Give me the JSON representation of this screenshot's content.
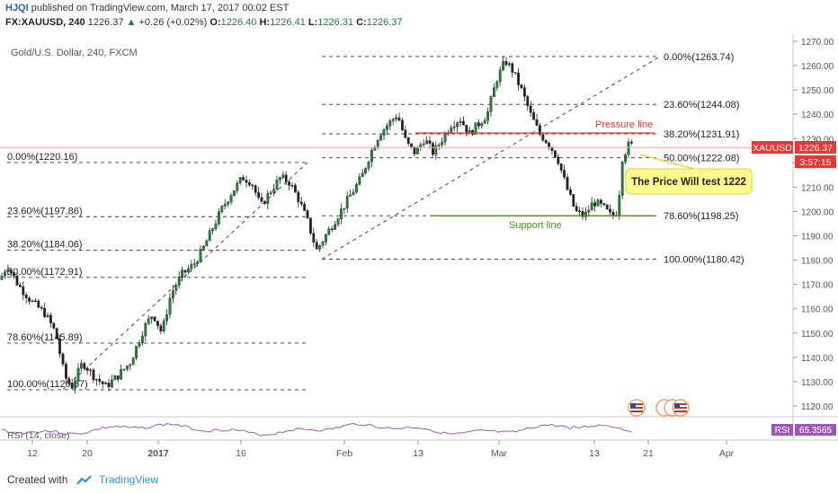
{
  "header": {
    "user": "HJQI",
    "published": "published on TradingView.com, March 17, 2017 00:02 EST"
  },
  "quote": {
    "symbol": "FX:XAUUSD, 240",
    "last": "1226.37",
    "change_arrow": "▲",
    "change": "+0.26 (+0.02%)",
    "o_label": "O:",
    "o": "1226.40",
    "h_label": "H:",
    "h": "1226.41",
    "l_label": "L:",
    "l": "1226.31",
    "c_label": "C:",
    "c": "1226.37"
  },
  "chart_title": "Gold/U.S. Dollar, 240, FXCM",
  "price_badge": {
    "symbol": "XAUUSD",
    "price": "1226.37",
    "countdown": "3:57:15",
    "color": "#e53935"
  },
  "rsi": {
    "label": "RSI (14, close)",
    "badge_name": "RSI",
    "badge_value": "65.3565",
    "color": "#9b59b6"
  },
  "footer": {
    "created_with": "Created with",
    "brand": "TradingView",
    "logo_icon": "tradingview-logo-icon"
  },
  "annotation": {
    "text": "The Price Will test 1222",
    "bg": "#fffb8f"
  },
  "pressure_line": {
    "label": "Pressure line",
    "price": 1232.3,
    "color": "#e53935"
  },
  "support_line": {
    "label": "Support line",
    "price": 1198.25,
    "color": "#4f8a2a"
  },
  "event_icon": "us-flag-calendar-icon",
  "chart_data": {
    "type": "candlestick",
    "yaxis_ticks": [
      1120,
      1130,
      1140,
      1150,
      1160,
      1170,
      1180,
      1190,
      1200,
      1210,
      1220,
      1230,
      1240,
      1250,
      1260,
      1270
    ],
    "ylim": [
      1115,
      1272
    ],
    "xaxis_ticks": [
      "12",
      "20",
      "2017",
      "16",
      "Feb",
      "13",
      "Mar",
      "13",
      "21",
      "Apr"
    ],
    "grid": false,
    "fib_left": [
      {
        "label": "0.00%(1220.16)",
        "price": 1220.16
      },
      {
        "label": "23.60%(1197.86)",
        "price": 1197.86
      },
      {
        "label": "38.20%(1184.06)",
        "price": 1184.06
      },
      {
        "label": "50.00%(1172.91)",
        "price": 1172.91
      },
      {
        "label": "78.60%(1145.89)",
        "price": 1145.89
      },
      {
        "label": "100.00%(1126.67)",
        "price": 1126.67
      }
    ],
    "fib_right": [
      {
        "label": "0.00%(1263.74)",
        "price": 1263.74
      },
      {
        "label": "23.60%(1244.08)",
        "price": 1244.08
      },
      {
        "label": "38.20%(1231.91)",
        "price": 1231.91
      },
      {
        "label": "50.00%(1222.08)",
        "price": 1222.08
      },
      {
        "label": "78.60%(1198.25)",
        "price": 1198.25
      },
      {
        "label": "100.00%(1180.42)",
        "price": 1180.42
      }
    ],
    "price_path": [
      [
        0,
        1172
      ],
      [
        8,
        1178
      ],
      [
        20,
        1170
      ],
      [
        35,
        1163
      ],
      [
        50,
        1158
      ],
      [
        62,
        1150
      ],
      [
        72,
        1132
      ],
      [
        80,
        1128
      ],
      [
        92,
        1138
      ],
      [
        105,
        1132
      ],
      [
        118,
        1128
      ],
      [
        130,
        1132
      ],
      [
        145,
        1138
      ],
      [
        160,
        1152
      ],
      [
        170,
        1158
      ],
      [
        180,
        1150
      ],
      [
        190,
        1166
      ],
      [
        202,
        1174
      ],
      [
        215,
        1178
      ],
      [
        225,
        1184
      ],
      [
        235,
        1192
      ],
      [
        248,
        1202
      ],
      [
        258,
        1208
      ],
      [
        270,
        1214
      ],
      [
        280,
        1212
      ],
      [
        290,
        1202
      ],
      [
        300,
        1208
      ],
      [
        312,
        1214
      ],
      [
        322,
        1212
      ],
      [
        332,
        1205
      ],
      [
        342,
        1196
      ],
      [
        352,
        1184
      ],
      [
        362,
        1190
      ],
      [
        372,
        1196
      ],
      [
        382,
        1202
      ],
      [
        392,
        1208
      ],
      [
        402,
        1214
      ],
      [
        412,
        1224
      ],
      [
        422,
        1232
      ],
      [
        432,
        1236
      ],
      [
        442,
        1240
      ],
      [
        452,
        1228
      ],
      [
        462,
        1224
      ],
      [
        472,
        1230
      ],
      [
        482,
        1224
      ],
      [
        492,
        1230
      ],
      [
        502,
        1236
      ],
      [
        512,
        1238
      ],
      [
        522,
        1232
      ],
      [
        532,
        1236
      ],
      [
        542,
        1240
      ],
      [
        552,
        1254
      ],
      [
        562,
        1262
      ],
      [
        570,
        1258
      ],
      [
        580,
        1250
      ],
      [
        590,
        1240
      ],
      [
        600,
        1232
      ],
      [
        610,
        1228
      ],
      [
        620,
        1222
      ],
      [
        630,
        1210
      ],
      [
        640,
        1200
      ],
      [
        650,
        1198
      ],
      [
        660,
        1204
      ],
      [
        670,
        1202
      ],
      [
        680,
        1198
      ],
      [
        687,
        1200
      ],
      [
        692,
        1222
      ],
      [
        700,
        1228
      ],
      [
        706,
        1226
      ]
    ]
  }
}
